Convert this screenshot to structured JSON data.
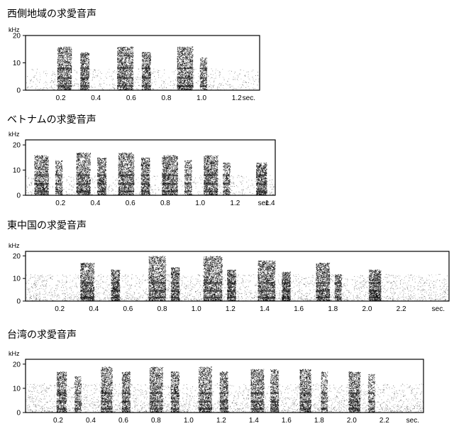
{
  "chart_data": [
    {
      "type": "heatmap",
      "title": "西側地域の求愛音声",
      "ylabel": "kHz",
      "xlabel": "sec.",
      "ylim": [
        0,
        20
      ],
      "xlim": [
        0,
        1.33
      ],
      "y_ticks": [
        "20",
        "10",
        "0"
      ],
      "x_ticks": [
        "0.2",
        "0.4",
        "0.6",
        "0.8",
        "1.0",
        "1.2"
      ],
      "pulse_groups_sec": [
        {
          "start": 0.18,
          "end": 0.26,
          "max_khz": 16
        },
        {
          "start": 0.31,
          "end": 0.36,
          "max_khz": 14
        },
        {
          "start": 0.52,
          "end": 0.61,
          "max_khz": 16
        },
        {
          "start": 0.66,
          "end": 0.71,
          "max_khz": 14
        },
        {
          "start": 0.86,
          "end": 0.95,
          "max_khz": 16
        },
        {
          "start": 0.99,
          "end": 1.03,
          "max_khz": 12
        }
      ]
    },
    {
      "type": "heatmap",
      "title": "ベトナムの求愛音声",
      "ylabel": "kHz",
      "xlabel": "sec.",
      "ylim": [
        0,
        22
      ],
      "xlim": [
        0,
        1.43
      ],
      "y_ticks": [
        "20",
        "10",
        "0"
      ],
      "x_ticks": [
        "0.2",
        "0.4",
        "0.6",
        "0.8",
        "1.0",
        "1.2",
        "1.4"
      ],
      "pulse_groups_sec": [
        {
          "start": 0.05,
          "end": 0.13,
          "max_khz": 16
        },
        {
          "start": 0.17,
          "end": 0.21,
          "max_khz": 14
        },
        {
          "start": 0.29,
          "end": 0.37,
          "max_khz": 17
        },
        {
          "start": 0.41,
          "end": 0.46,
          "max_khz": 15
        },
        {
          "start": 0.53,
          "end": 0.62,
          "max_khz": 17
        },
        {
          "start": 0.66,
          "end": 0.71,
          "max_khz": 15
        },
        {
          "start": 0.78,
          "end": 0.87,
          "max_khz": 16
        },
        {
          "start": 0.91,
          "end": 0.95,
          "max_khz": 14
        },
        {
          "start": 1.02,
          "end": 1.1,
          "max_khz": 16
        },
        {
          "start": 1.13,
          "end": 1.17,
          "max_khz": 13
        },
        {
          "start": 1.32,
          "end": 1.38,
          "max_khz": 13
        }
      ]
    },
    {
      "type": "heatmap",
      "title": "東中国の求愛音声",
      "ylabel": "kHz",
      "xlabel": "sec.",
      "ylim": [
        0,
        22
      ],
      "xlim": [
        0,
        2.48
      ],
      "y_ticks": [
        "20",
        "10",
        "0"
      ],
      "x_ticks": [
        "0.2",
        "0.4",
        "0.6",
        "0.8",
        "1.0",
        "1.2",
        "1.4",
        "1.6",
        "1.8",
        "2.0",
        "2.2"
      ],
      "pulse_groups_sec": [
        {
          "start": 0.32,
          "end": 0.4,
          "max_khz": 17
        },
        {
          "start": 0.5,
          "end": 0.55,
          "max_khz": 14
        },
        {
          "start": 0.72,
          "end": 0.82,
          "max_khz": 20
        },
        {
          "start": 0.85,
          "end": 0.9,
          "max_khz": 15
        },
        {
          "start": 1.04,
          "end": 1.15,
          "max_khz": 20
        },
        {
          "start": 1.18,
          "end": 1.23,
          "max_khz": 14
        },
        {
          "start": 1.36,
          "end": 1.46,
          "max_khz": 18
        },
        {
          "start": 1.5,
          "end": 1.55,
          "max_khz": 13
        },
        {
          "start": 1.7,
          "end": 1.78,
          "max_khz": 17
        },
        {
          "start": 1.81,
          "end": 1.85,
          "max_khz": 12
        },
        {
          "start": 2.01,
          "end": 2.08,
          "max_khz": 14
        }
      ]
    },
    {
      "type": "heatmap",
      "title": "台湾の求愛音声",
      "ylabel": "kHz",
      "xlabel": "sec.",
      "ylim": [
        0,
        22
      ],
      "xlim": [
        0,
        2.44
      ],
      "y_ticks": [
        "20",
        "10",
        "0"
      ],
      "x_ticks": [
        "0.2",
        "0.4",
        "0.6",
        "0.8",
        "1.0",
        "1.2",
        "1.4",
        "1.6",
        "1.8",
        "2.0",
        "2.2"
      ],
      "pulse_groups_sec": [
        {
          "start": 0.19,
          "end": 0.25,
          "max_khz": 17
        },
        {
          "start": 0.3,
          "end": 0.34,
          "max_khz": 15
        },
        {
          "start": 0.46,
          "end": 0.53,
          "max_khz": 19
        },
        {
          "start": 0.59,
          "end": 0.64,
          "max_khz": 17
        },
        {
          "start": 0.76,
          "end": 0.84,
          "max_khz": 19
        },
        {
          "start": 0.89,
          "end": 0.94,
          "max_khz": 17
        },
        {
          "start": 1.06,
          "end": 1.14,
          "max_khz": 19
        },
        {
          "start": 1.19,
          "end": 1.24,
          "max_khz": 17
        },
        {
          "start": 1.38,
          "end": 1.46,
          "max_khz": 18
        },
        {
          "start": 1.5,
          "end": 1.55,
          "max_khz": 18
        },
        {
          "start": 1.68,
          "end": 1.75,
          "max_khz": 18
        },
        {
          "start": 1.81,
          "end": 1.85,
          "max_khz": 17
        },
        {
          "start": 1.98,
          "end": 2.05,
          "max_khz": 17
        },
        {
          "start": 2.1,
          "end": 2.14,
          "max_khz": 16
        }
      ]
    }
  ]
}
